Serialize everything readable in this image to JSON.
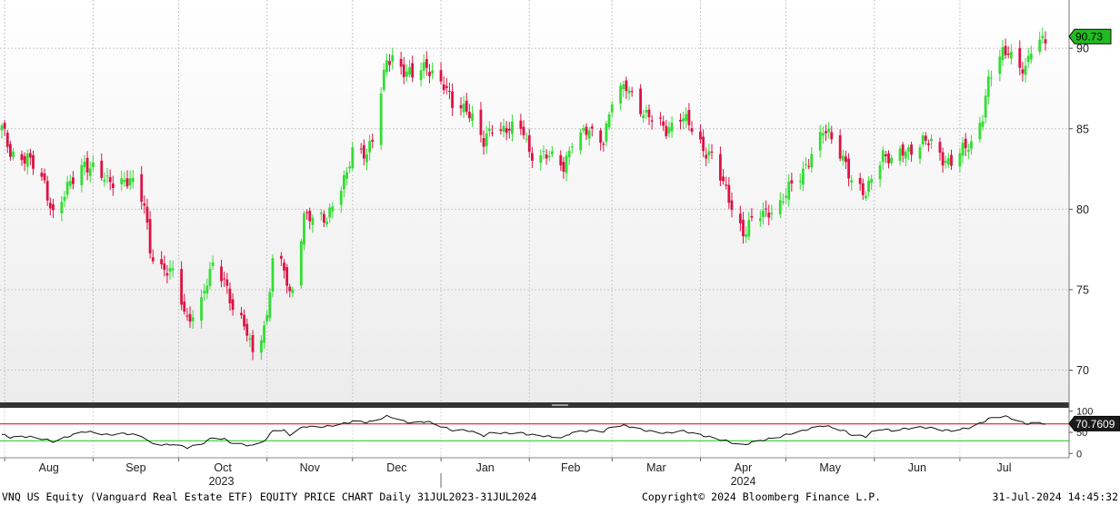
{
  "chart_data": [
    {
      "type": "candlestick",
      "title": "",
      "ylim": [
        68,
        93
      ],
      "yticks": [
        70,
        75,
        80,
        85,
        90
      ],
      "ytick_labels": [
        "70",
        "75",
        "80",
        "85",
        "90"
      ],
      "last_price_label": "90.73",
      "colors": {
        "up": "#33dd33",
        "down": "#dd1144",
        "last_price_tag": "#22bb22"
      },
      "month_labels": [
        "Aug",
        "Sep",
        "Oct",
        "Nov",
        "Dec",
        "Jan",
        "Feb",
        "Mar",
        "Apr",
        "May",
        "Jun",
        "Jul"
      ],
      "year_labels": [
        "2023",
        "2024"
      ],
      "close_path": [
        [
          "2023-07-31",
          85.0
        ],
        [
          "2023-08-03",
          83.5
        ],
        [
          "2023-08-09",
          83.2
        ],
        [
          "2023-08-15",
          81.5
        ],
        [
          "2023-08-18",
          79.8
        ],
        [
          "2023-08-24",
          81.5
        ],
        [
          "2023-08-29",
          82.9
        ],
        [
          "2023-09-01",
          82.6
        ],
        [
          "2023-09-06",
          81.6
        ],
        [
          "2023-09-11",
          81.9
        ],
        [
          "2023-09-14",
          81.8
        ],
        [
          "2023-09-19",
          80.2
        ],
        [
          "2023-09-21",
          77.5
        ],
        [
          "2023-09-26",
          76.2
        ],
        [
          "2023-09-29",
          75.9
        ],
        [
          "2023-10-04",
          73.2
        ],
        [
          "2023-10-09",
          74.2
        ],
        [
          "2023-10-13",
          76.5
        ],
        [
          "2023-10-17",
          75.8
        ],
        [
          "2023-10-20",
          73.8
        ],
        [
          "2023-10-25",
          72.3
        ],
        [
          "2023-10-27",
          71.2
        ],
        [
          "2023-11-01",
          73.2
        ],
        [
          "2023-11-03",
          76.8
        ],
        [
          "2023-11-07",
          76.3
        ],
        [
          "2023-11-09",
          74.8
        ],
        [
          "2023-11-10",
          75.2
        ],
        [
          "2023-11-14",
          79.5
        ],
        [
          "2023-11-17",
          79.3
        ],
        [
          "2023-11-22",
          79.6
        ],
        [
          "2023-11-29",
          82.0
        ],
        [
          "2023-12-01",
          83.8
        ],
        [
          "2023-12-06",
          83.6
        ],
        [
          "2023-12-08",
          84.2
        ],
        [
          "2023-12-13",
          89.2
        ],
        [
          "2023-12-15",
          89.6
        ],
        [
          "2023-12-19",
          88.6
        ],
        [
          "2023-12-22",
          88.2
        ],
        [
          "2023-12-27",
          89.0
        ],
        [
          "2024-01-02",
          87.6
        ],
        [
          "2024-01-05",
          86.5
        ],
        [
          "2024-01-10",
          86.4
        ],
        [
          "2024-01-16",
          84.0
        ],
        [
          "2024-01-19",
          85.2
        ],
        [
          "2024-01-24",
          85.0
        ],
        [
          "2024-01-30",
          84.8
        ],
        [
          "2024-02-01",
          83.6
        ],
        [
          "2024-02-05",
          83.4
        ],
        [
          "2024-02-08",
          83.2
        ],
        [
          "2024-02-13",
          82.7
        ],
        [
          "2024-02-16",
          84.3
        ],
        [
          "2024-02-22",
          84.8
        ],
        [
          "2024-02-27",
          84.4
        ],
        [
          "2024-03-01",
          86.7
        ],
        [
          "2024-03-06",
          87.6
        ],
        [
          "2024-03-08",
          87.2
        ],
        [
          "2024-03-13",
          85.8
        ],
        [
          "2024-03-15",
          85.5
        ],
        [
          "2024-03-20",
          85.0
        ],
        [
          "2024-03-25",
          85.8
        ],
        [
          "2024-03-28",
          85.2
        ],
        [
          "2024-04-02",
          83.8
        ],
        [
          "2024-04-05",
          83.4
        ],
        [
          "2024-04-10",
          81.0
        ],
        [
          "2024-04-12",
          80.2
        ],
        [
          "2024-04-16",
          78.6
        ],
        [
          "2024-04-19",
          79.2
        ],
        [
          "2024-04-24",
          79.8
        ],
        [
          "2024-04-29",
          80.4
        ],
        [
          "2024-05-02",
          81.2
        ],
        [
          "2024-05-06",
          82.0
        ],
        [
          "2024-05-09",
          83.2
        ],
        [
          "2024-05-14",
          84.8
        ],
        [
          "2024-05-17",
          84.4
        ],
        [
          "2024-05-22",
          83.0
        ],
        [
          "2024-05-24",
          81.6
        ],
        [
          "2024-05-29",
          80.8
        ],
        [
          "2024-05-31",
          82.2
        ],
        [
          "2024-06-04",
          83.5
        ],
        [
          "2024-06-07",
          82.8
        ],
        [
          "2024-06-11",
          83.6
        ],
        [
          "2024-06-14",
          83.8
        ],
        [
          "2024-06-18",
          84.2
        ],
        [
          "2024-06-21",
          84.0
        ],
        [
          "2024-06-25",
          83.2
        ],
        [
          "2024-06-28",
          83.0
        ],
        [
          "2024-07-02",
          83.6
        ],
        [
          "2024-07-05",
          84.0
        ],
        [
          "2024-07-09",
          86.0
        ],
        [
          "2024-07-11",
          88.0
        ],
        [
          "2024-07-16",
          89.6
        ],
        [
          "2024-07-18",
          89.9
        ],
        [
          "2024-07-22",
          89.0
        ],
        [
          "2024-07-24",
          88.6
        ],
        [
          "2024-07-26",
          89.8
        ],
        [
          "2024-07-31",
          90.73
        ]
      ]
    },
    {
      "type": "line",
      "title": "",
      "ylim": [
        -8,
        108
      ],
      "yticks": [
        0,
        50,
        100
      ],
      "ytick_labels": [
        "0",
        "50",
        "100"
      ],
      "last_value_label": "70.7609",
      "reference_lines": [
        {
          "value": 70,
          "color": "#dd2222"
        },
        {
          "value": 30,
          "color": "#33cc33"
        }
      ],
      "series": [
        {
          "points": [
            [
              "2023-07-31",
              45
            ],
            [
              "2023-08-03",
              38
            ],
            [
              "2023-08-09",
              40
            ],
            [
              "2023-08-15",
              34
            ],
            [
              "2023-08-18",
              28
            ],
            [
              "2023-08-24",
              42
            ],
            [
              "2023-08-29",
              52
            ],
            [
              "2023-09-01",
              50
            ],
            [
              "2023-09-06",
              44
            ],
            [
              "2023-09-11",
              47
            ],
            [
              "2023-09-14",
              46
            ],
            [
              "2023-09-19",
              38
            ],
            [
              "2023-09-21",
              25
            ],
            [
              "2023-09-26",
              20
            ],
            [
              "2023-09-29",
              22
            ],
            [
              "2023-10-04",
              14
            ],
            [
              "2023-10-09",
              22
            ],
            [
              "2023-10-13",
              38
            ],
            [
              "2023-10-17",
              34
            ],
            [
              "2023-10-20",
              24
            ],
            [
              "2023-10-25",
              20
            ],
            [
              "2023-10-27",
              18
            ],
            [
              "2023-11-01",
              34
            ],
            [
              "2023-11-03",
              56
            ],
            [
              "2023-11-07",
              54
            ],
            [
              "2023-11-09",
              44
            ],
            [
              "2023-11-10",
              47
            ],
            [
              "2023-11-14",
              64
            ],
            [
              "2023-11-17",
              63
            ],
            [
              "2023-11-22",
              64
            ],
            [
              "2023-11-29",
              72
            ],
            [
              "2023-12-01",
              76
            ],
            [
              "2023-12-06",
              74
            ],
            [
              "2023-12-08",
              76
            ],
            [
              "2023-12-13",
              88
            ],
            [
              "2023-12-15",
              86
            ],
            [
              "2023-12-19",
              76
            ],
            [
              "2023-12-22",
              72
            ],
            [
              "2023-12-27",
              76
            ],
            [
              "2024-01-02",
              62
            ],
            [
              "2024-01-05",
              55
            ],
            [
              "2024-01-10",
              55
            ],
            [
              "2024-01-16",
              42
            ],
            [
              "2024-01-19",
              50
            ],
            [
              "2024-01-24",
              48
            ],
            [
              "2024-01-30",
              48
            ],
            [
              "2024-02-01",
              44
            ],
            [
              "2024-02-05",
              42
            ],
            [
              "2024-02-08",
              40
            ],
            [
              "2024-02-13",
              38
            ],
            [
              "2024-02-16",
              50
            ],
            [
              "2024-02-22",
              54
            ],
            [
              "2024-02-27",
              52
            ],
            [
              "2024-03-01",
              64
            ],
            [
              "2024-03-06",
              66
            ],
            [
              "2024-03-08",
              62
            ],
            [
              "2024-03-13",
              54
            ],
            [
              "2024-03-15",
              52
            ],
            [
              "2024-03-20",
              48
            ],
            [
              "2024-03-25",
              54
            ],
            [
              "2024-03-28",
              50
            ],
            [
              "2024-04-02",
              42
            ],
            [
              "2024-04-05",
              38
            ],
            [
              "2024-04-10",
              30
            ],
            [
              "2024-04-12",
              26
            ],
            [
              "2024-04-16",
              20
            ],
            [
              "2024-04-19",
              26
            ],
            [
              "2024-04-24",
              33
            ],
            [
              "2024-04-29",
              40
            ],
            [
              "2024-05-02",
              46
            ],
            [
              "2024-05-06",
              52
            ],
            [
              "2024-05-09",
              58
            ],
            [
              "2024-05-14",
              66
            ],
            [
              "2024-05-17",
              62
            ],
            [
              "2024-05-22",
              52
            ],
            [
              "2024-05-24",
              44
            ],
            [
              "2024-05-29",
              40
            ],
            [
              "2024-05-31",
              50
            ],
            [
              "2024-06-04",
              58
            ],
            [
              "2024-06-07",
              54
            ],
            [
              "2024-06-11",
              58
            ],
            [
              "2024-06-14",
              60
            ],
            [
              "2024-06-18",
              62
            ],
            [
              "2024-06-21",
              60
            ],
            [
              "2024-06-25",
              55
            ],
            [
              "2024-06-28",
              54
            ],
            [
              "2024-07-02",
              58
            ],
            [
              "2024-07-05",
              62
            ],
            [
              "2024-07-09",
              74
            ],
            [
              "2024-07-11",
              82
            ],
            [
              "2024-07-16",
              88
            ],
            [
              "2024-07-18",
              86
            ],
            [
              "2024-07-22",
              76
            ],
            [
              "2024-07-24",
              70
            ],
            [
              "2024-07-26",
              72
            ],
            [
              "2024-07-31",
              70.7609
            ]
          ]
        }
      ]
    }
  ],
  "footer": {
    "left": "VNQ US Equity (Vanguard Real Estate ETF) EQUITY PRICE CHART  Daily 31JUL2023-31JUL2024",
    "center": "Copyright© 2024 Bloomberg Finance L.P.",
    "right": "31-Jul-2024 14:45:32"
  }
}
